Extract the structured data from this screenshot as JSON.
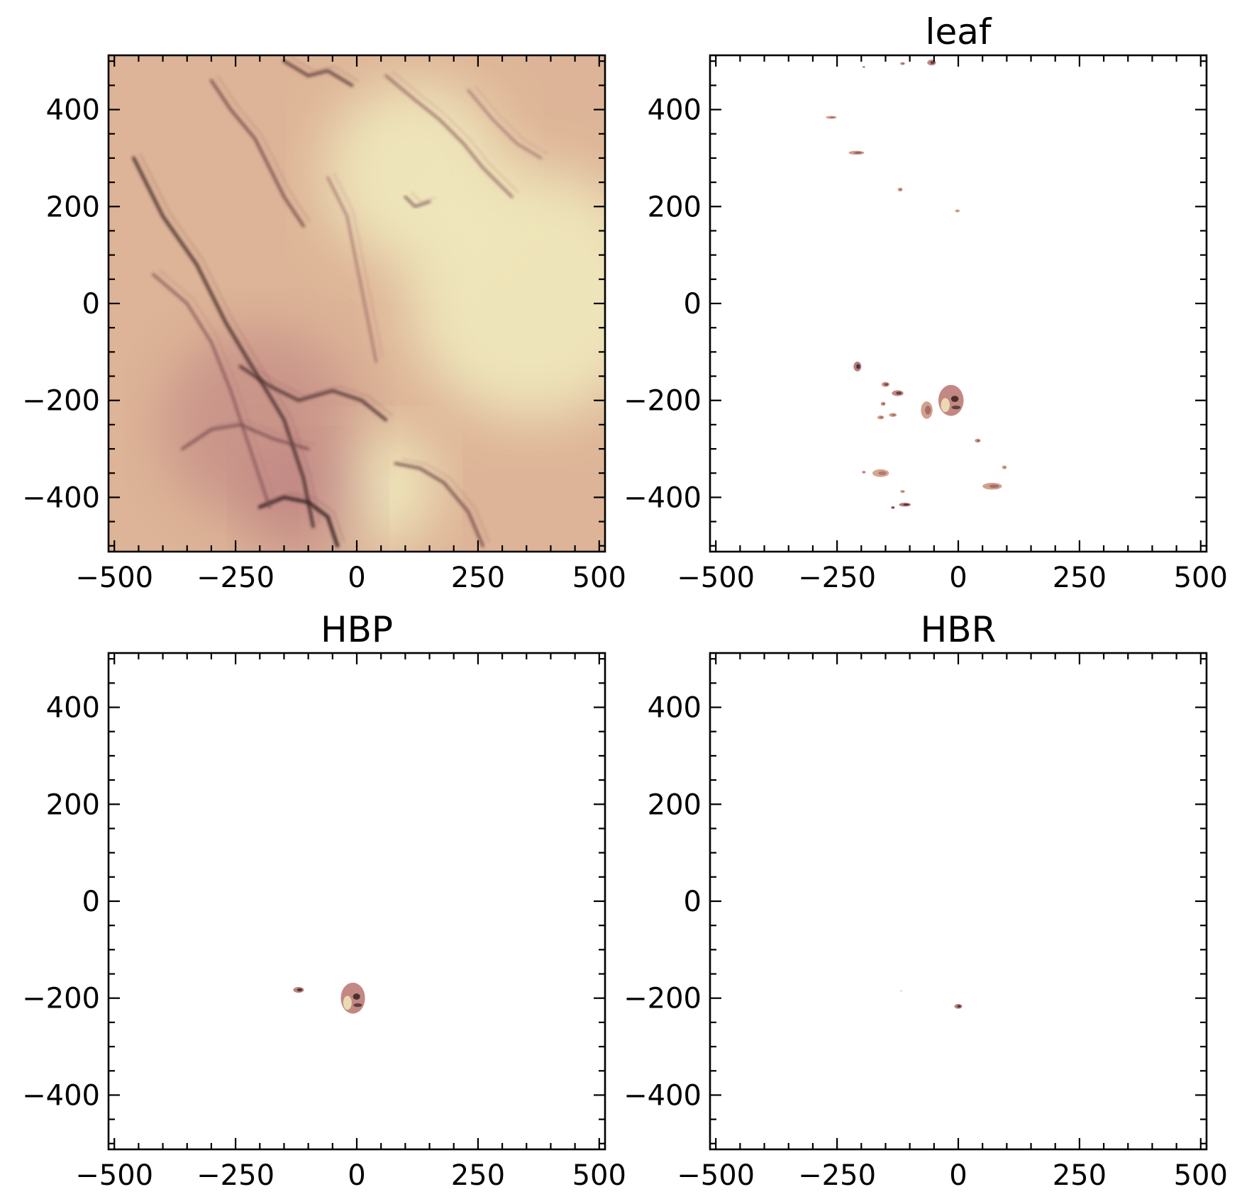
{
  "chart_data": [
    {
      "type": "heatmap",
      "title": "",
      "xlabel": "",
      "ylabel": "",
      "xlim": [
        -512,
        512
      ],
      "ylim": [
        -512,
        512
      ],
      "x_ticks": [
        -500,
        -250,
        0,
        250,
        500
      ],
      "y_ticks": [
        -400,
        -200,
        0,
        200,
        400
      ],
      "x_minor_step": 50,
      "y_minor_step": 50,
      "grid": false,
      "colormap": [
        "#f1edc0",
        "#d9a98f",
        "#b2707a",
        "#201410"
      ],
      "coverage": "full",
      "filaments": [
        {
          "points": [
            [
              -300,
              460
            ],
            [
              -260,
              400
            ],
            [
              -210,
              340
            ],
            [
              -180,
              280
            ],
            [
              -150,
              220
            ],
            [
              -110,
              160
            ]
          ],
          "strength": 0.7
        },
        {
          "points": [
            [
              -460,
              300
            ],
            [
              -400,
              180
            ],
            [
              -330,
              80
            ],
            [
              -270,
              -40
            ],
            [
              -210,
              -140
            ],
            [
              -150,
              -240
            ],
            [
              -110,
              -360
            ],
            [
              -90,
              -460
            ]
          ],
          "strength": 0.9
        },
        {
          "points": [
            [
              -240,
              -130
            ],
            [
              -180,
              -170
            ],
            [
              -120,
              -200
            ],
            [
              -50,
              -180
            ],
            [
              10,
              -200
            ],
            [
              60,
              -240
            ]
          ],
          "strength": 0.85
        },
        {
          "points": [
            [
              -200,
              -420
            ],
            [
              -150,
              -400
            ],
            [
              -100,
              -410
            ],
            [
              -60,
              -440
            ],
            [
              -40,
              -500
            ]
          ],
          "strength": 1.0
        },
        {
          "points": [
            [
              -150,
              500
            ],
            [
              -100,
              470
            ],
            [
              -60,
              480
            ],
            [
              -10,
              450
            ]
          ],
          "strength": 0.8
        },
        {
          "points": [
            [
              60,
              470
            ],
            [
              120,
              420
            ],
            [
              170,
              380
            ],
            [
              220,
              330
            ],
            [
              260,
              280
            ],
            [
              320,
              220
            ]
          ],
          "strength": 0.55
        },
        {
          "points": [
            [
              -420,
              60
            ],
            [
              -350,
              0
            ],
            [
              -300,
              -80
            ],
            [
              -260,
              -180
            ],
            [
              -220,
              -300
            ],
            [
              -180,
              -420
            ]
          ],
          "strength": 0.6
        },
        {
          "points": [
            [
              80,
              -330
            ],
            [
              130,
              -340
            ],
            [
              180,
              -370
            ],
            [
              230,
              -430
            ],
            [
              260,
              -500
            ]
          ],
          "strength": 0.7
        },
        {
          "points": [
            [
              -60,
              260
            ],
            [
              -20,
              180
            ],
            [
              0,
              80
            ],
            [
              20,
              -20
            ],
            [
              40,
              -120
            ]
          ],
          "strength": 0.45
        },
        {
          "points": [
            [
              -360,
              -300
            ],
            [
              -300,
              -260
            ],
            [
              -240,
              -250
            ],
            [
              -170,
              -280
            ],
            [
              -100,
              -300
            ]
          ],
          "strength": 0.65
        },
        {
          "points": [
            [
              100,
              220
            ],
            [
              120,
              200
            ],
            [
              150,
              210
            ]
          ],
          "strength": 0.6
        },
        {
          "points": [
            [
              230,
              440
            ],
            [
              280,
              380
            ],
            [
              330,
              330
            ],
            [
              380,
              300
            ]
          ],
          "strength": 0.45
        }
      ],
      "bright_regions": [
        {
          "center": [
            360,
            20
          ],
          "radius": 260
        },
        {
          "center": [
            120,
            270
          ],
          "radius": 190
        },
        {
          "center": [
            50,
            -380
          ],
          "radius": 120
        }
      ],
      "dark_regions": [
        {
          "center": [
            -200,
            -250
          ],
          "radius": 200
        },
        {
          "center": [
            -100,
            -420
          ],
          "radius": 120
        }
      ]
    },
    {
      "type": "heatmap",
      "title": "leaf",
      "xlabel": "",
      "ylabel": "",
      "xlim": [
        -512,
        512
      ],
      "ylim": [
        -512,
        512
      ],
      "x_ticks": [
        -500,
        -250,
        0,
        250,
        500
      ],
      "y_ticks": [
        -400,
        -200,
        0,
        200,
        400
      ],
      "x_minor_step": 50,
      "y_minor_step": 50,
      "grid": false,
      "coverage": "masked",
      "blobs": [
        {
          "x": -55,
          "y": 497,
          "rx": 9,
          "ry": 6,
          "level": 0.75
        },
        {
          "x": -115,
          "y": 495,
          "rx": 5,
          "ry": 3,
          "level": 0.6
        },
        {
          "x": -195,
          "y": 488,
          "rx": 3,
          "ry": 2,
          "level": 0.6
        },
        {
          "x": -262,
          "y": 384,
          "rx": 11,
          "ry": 3,
          "level": 0.55
        },
        {
          "x": -210,
          "y": 311,
          "rx": 16,
          "ry": 4,
          "level": 0.6
        },
        {
          "x": -120,
          "y": 235,
          "rx": 5,
          "ry": 4,
          "level": 0.55
        },
        {
          "x": -2,
          "y": 191,
          "rx": 5,
          "ry": 3,
          "level": 0.45
        },
        {
          "x": -208,
          "y": -130,
          "rx": 8,
          "ry": 10,
          "level": 0.85
        },
        {
          "x": -150,
          "y": -167,
          "rx": 8,
          "ry": 5,
          "level": 0.7
        },
        {
          "x": -125,
          "y": -185,
          "rx": 12,
          "ry": 6,
          "level": 0.75
        },
        {
          "x": -155,
          "y": -207,
          "rx": 5,
          "ry": 4,
          "level": 0.6
        },
        {
          "x": -160,
          "y": -235,
          "rx": 7,
          "ry": 4,
          "level": 0.55
        },
        {
          "x": -135,
          "y": -230,
          "rx": 8,
          "ry": 4,
          "level": 0.55
        },
        {
          "x": -65,
          "y": -220,
          "rx": 12,
          "ry": 18,
          "level": 0.55
        },
        {
          "x": -15,
          "y": -200,
          "rx": 26,
          "ry": 32,
          "level": 0.75
        },
        {
          "x": 40,
          "y": -283,
          "rx": 6,
          "ry": 4,
          "level": 0.6
        },
        {
          "x": -195,
          "y": -348,
          "rx": 4,
          "ry": 3,
          "level": 0.5
        },
        {
          "x": -160,
          "y": -350,
          "rx": 17,
          "ry": 8,
          "level": 0.5
        },
        {
          "x": -115,
          "y": -388,
          "rx": 5,
          "ry": 3,
          "level": 0.5
        },
        {
          "x": -110,
          "y": -415,
          "rx": 12,
          "ry": 4,
          "level": 0.9
        },
        {
          "x": -135,
          "y": -421,
          "rx": 4,
          "ry": 3,
          "level": 0.8
        },
        {
          "x": 70,
          "y": -377,
          "rx": 20,
          "ry": 7,
          "level": 0.55
        },
        {
          "x": 95,
          "y": -338,
          "rx": 5,
          "ry": 4,
          "level": 0.5
        }
      ]
    },
    {
      "type": "heatmap",
      "title": "HBP",
      "xlabel": "",
      "ylabel": "",
      "xlim": [
        -512,
        512
      ],
      "ylim": [
        -512,
        512
      ],
      "x_ticks": [
        -500,
        -250,
        0,
        250,
        500
      ],
      "y_ticks": [
        -400,
        -200,
        0,
        200,
        400
      ],
      "x_minor_step": 50,
      "y_minor_step": 50,
      "grid": false,
      "coverage": "masked",
      "blobs": [
        {
          "x": -120,
          "y": -183,
          "rx": 11,
          "ry": 6,
          "level": 0.8
        },
        {
          "x": -8,
          "y": -200,
          "rx": 25,
          "ry": 32,
          "level": 0.75
        }
      ]
    },
    {
      "type": "heatmap",
      "title": "HBR",
      "xlabel": "",
      "ylabel": "",
      "xlim": [
        -512,
        512
      ],
      "ylim": [
        -512,
        512
      ],
      "x_ticks": [
        -500,
        -250,
        0,
        250,
        500
      ],
      "y_ticks": [
        -400,
        -200,
        0,
        200,
        400
      ],
      "x_minor_step": 50,
      "y_minor_step": 50,
      "grid": false,
      "coverage": "masked",
      "blobs": [
        {
          "x": 0,
          "y": -217,
          "rx": 8,
          "ry": 5,
          "level": 0.8
        },
        {
          "x": -118,
          "y": -185,
          "rx": 2,
          "ry": 1,
          "level": 0.4
        }
      ]
    }
  ]
}
